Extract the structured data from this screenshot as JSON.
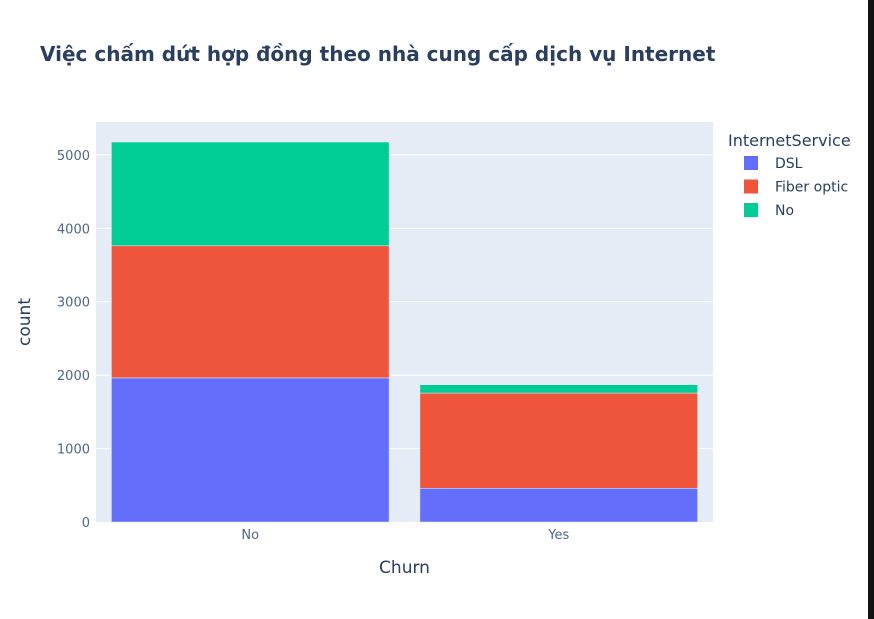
{
  "chart_data": {
    "type": "bar",
    "barmode": "stack",
    "title": "Việc chấm dứt hợp đồng theo nhà cung cấp dịch vụ Internet",
    "xlabel": "Churn",
    "ylabel": "count",
    "categories": [
      "No",
      "Yes"
    ],
    "series": [
      {
        "name": "DSL",
        "values": [
          1962,
          459
        ],
        "color": "#636efa"
      },
      {
        "name": "Fiber optic",
        "values": [
          1799,
          1297
        ],
        "color": "#ef553b"
      },
      {
        "name": "No",
        "values": [
          1413,
          113
        ],
        "color": "#00cc96"
      }
    ],
    "ylim": [
      0,
      5447
    ],
    "yticks": [
      0,
      1000,
      2000,
      3000,
      4000,
      5000
    ],
    "grid": true,
    "legend": {
      "title": "InternetService",
      "position": "right"
    },
    "colors": {
      "plot_background": "#e5ecf6",
      "grid": "#ffffff",
      "text": "#2a3f5f",
      "tick_text": "#506784"
    }
  }
}
